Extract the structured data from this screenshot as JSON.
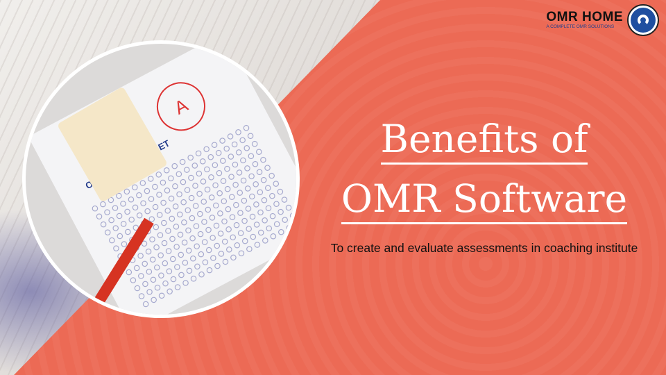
{
  "logo": {
    "name": "OMR HOME",
    "tagline": "A COMPLETE OMR SOLUTIONS"
  },
  "heading": {
    "line1": "Benefits of",
    "line2": "OMR Software"
  },
  "subtitle": "To create and evaluate assessments in coaching institute",
  "image": {
    "sheet_heading": "ON - ANSWER SHEET",
    "grade": "A"
  },
  "colors": {
    "accent": "#ec6a55",
    "logo_blue": "#1f4fa0"
  }
}
